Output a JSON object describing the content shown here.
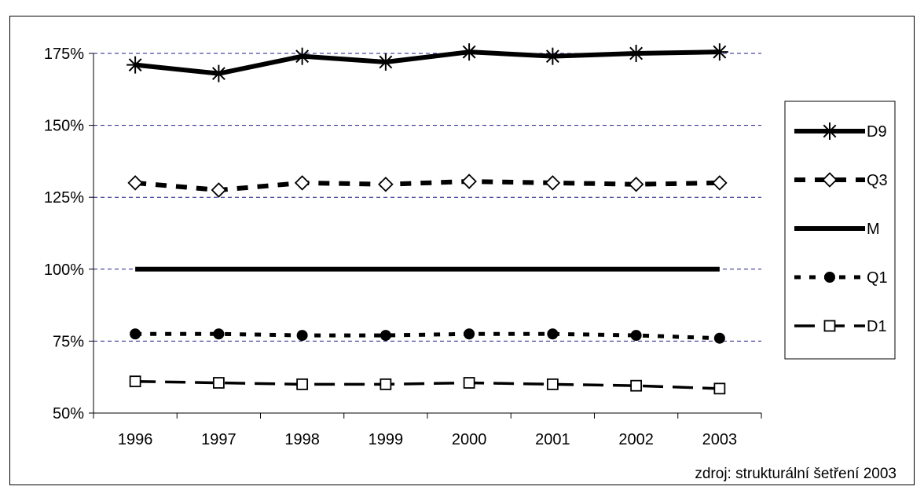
{
  "chart_data": {
    "type": "line",
    "categories": [
      "1996",
      "1997",
      "1998",
      "1999",
      "2000",
      "2001",
      "2002",
      "2003"
    ],
    "ylim": [
      50,
      175
    ],
    "yticks": [
      50,
      75,
      100,
      125,
      150,
      175
    ],
    "ytick_labels": [
      "50%",
      "75%",
      "100%",
      "125%",
      "150%",
      "175%"
    ],
    "grid": "horizontal dashed",
    "legend_position": "right",
    "series": [
      {
        "name": "D9",
        "values": [
          171,
          168,
          174,
          172,
          175.5,
          174,
          175,
          175.5
        ],
        "marker": "asterisk",
        "line": "solid-thick"
      },
      {
        "name": "Q3",
        "values": [
          130,
          127.5,
          130,
          129.5,
          130.5,
          130,
          129.5,
          130
        ],
        "marker": "diamond-open",
        "line": "dashed-thick"
      },
      {
        "name": "M",
        "values": [
          100,
          100,
          100,
          100,
          100,
          100,
          100,
          100
        ],
        "marker": "none",
        "line": "solid-thick"
      },
      {
        "name": "Q1",
        "values": [
          77.5,
          77.5,
          77,
          77,
          77.5,
          77.5,
          77,
          76
        ],
        "marker": "circle-filled",
        "line": "dotted"
      },
      {
        "name": "D1",
        "values": [
          61,
          60.5,
          60,
          60,
          60.5,
          60,
          59.5,
          58.5
        ],
        "marker": "square-open",
        "line": "dashed-long"
      }
    ],
    "source_note": "zdroj: strukturální šetření 2003"
  }
}
